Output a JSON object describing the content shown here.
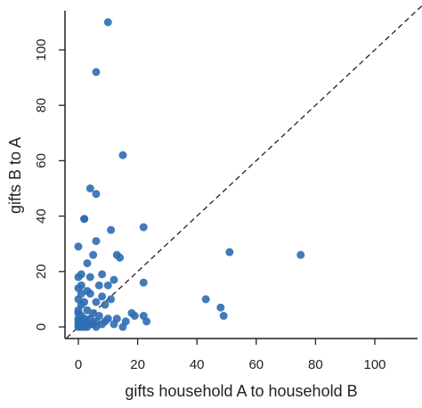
{
  "chart_data": {
    "type": "scatter",
    "title": "",
    "xlabel": "gifts household A to household B",
    "ylabel": "gifts B to A",
    "xlim": [
      -4,
      116
    ],
    "ylim": [
      -4,
      116
    ],
    "x_ticks": [
      0,
      20,
      40,
      60,
      80,
      100
    ],
    "y_ticks": [
      0,
      20,
      40,
      60,
      80,
      100
    ],
    "reference_line": "y = x (dashed)",
    "point_color": "#2f6db3",
    "grid": false,
    "legend": "none",
    "series": [
      {
        "points": [
          [
            10,
            110
          ],
          [
            6,
            92
          ],
          [
            15,
            62
          ],
          [
            4,
            50
          ],
          [
            6,
            48
          ],
          [
            2,
            39
          ],
          [
            2,
            39
          ],
          [
            22,
            36
          ],
          [
            11,
            35
          ],
          [
            6,
            31
          ],
          [
            0,
            29
          ],
          [
            5,
            26
          ],
          [
            13,
            26
          ],
          [
            14,
            25
          ],
          [
            3,
            23
          ],
          [
            1,
            19
          ],
          [
            8,
            19
          ],
          [
            0,
            18
          ],
          [
            4,
            18
          ],
          [
            12,
            17
          ],
          [
            22,
            16
          ],
          [
            1,
            15
          ],
          [
            7,
            15
          ],
          [
            10,
            15
          ],
          [
            0,
            14
          ],
          [
            3,
            13
          ],
          [
            1,
            12
          ],
          [
            4,
            12
          ],
          [
            8,
            11
          ],
          [
            0,
            10
          ],
          [
            11,
            10
          ],
          [
            43,
            10
          ],
          [
            2,
            9
          ],
          [
            6,
            9
          ],
          [
            1,
            8
          ],
          [
            9,
            8
          ],
          [
            48,
            7
          ],
          [
            0,
            6
          ],
          [
            3,
            6
          ],
          [
            0,
            5
          ],
          [
            5,
            5
          ],
          [
            18,
            5
          ],
          [
            1,
            4
          ],
          [
            7,
            4
          ],
          [
            19,
            4
          ],
          [
            22,
            4
          ],
          [
            49,
            4
          ],
          [
            0,
            3
          ],
          [
            2,
            3
          ],
          [
            4,
            3
          ],
          [
            10,
            3
          ],
          [
            13,
            3
          ],
          [
            0,
            2
          ],
          [
            1,
            2
          ],
          [
            3,
            2
          ],
          [
            6,
            2
          ],
          [
            9,
            2
          ],
          [
            16,
            2
          ],
          [
            23,
            2
          ],
          [
            0,
            1
          ],
          [
            2,
            1
          ],
          [
            4,
            1
          ],
          [
            5,
            1
          ],
          [
            8,
            1
          ],
          [
            12,
            1
          ],
          [
            0,
            0
          ],
          [
            1,
            0
          ],
          [
            2,
            0
          ],
          [
            3,
            0
          ],
          [
            6,
            0
          ],
          [
            15,
            0
          ],
          [
            51,
            27
          ],
          [
            75,
            26
          ]
        ]
      }
    ]
  }
}
